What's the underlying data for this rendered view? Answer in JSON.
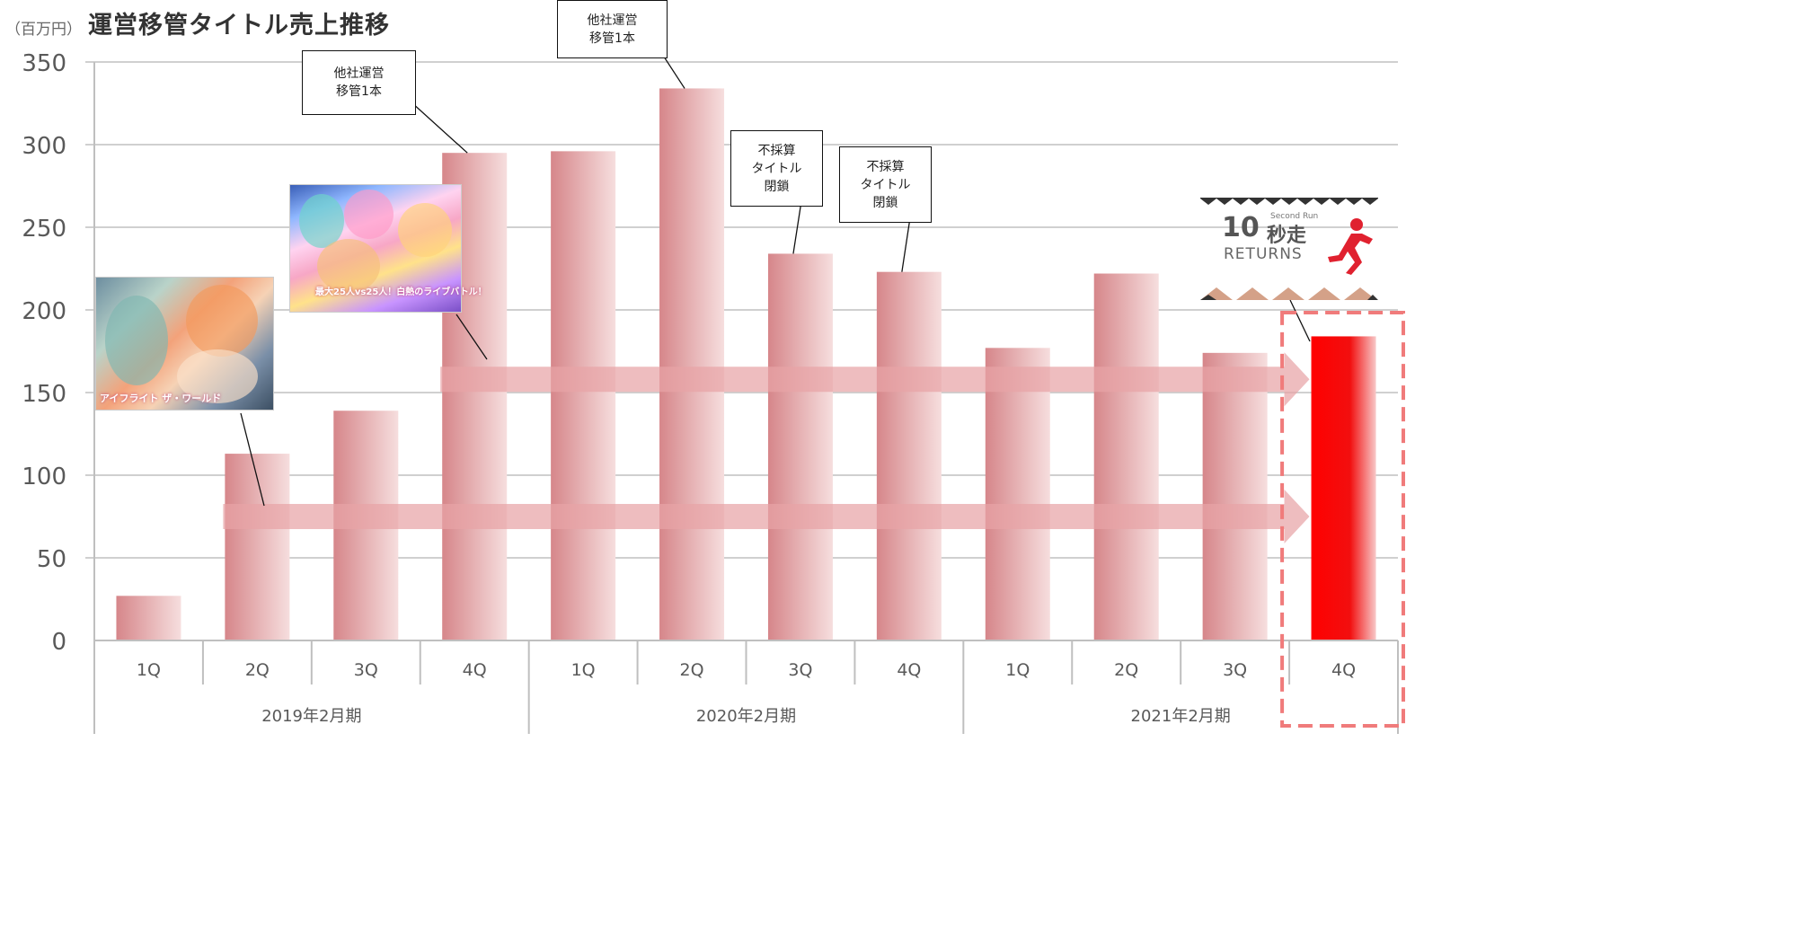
{
  "header": {
    "unit": "（百万円）",
    "title": "運営移管タイトル売上推移"
  },
  "colors": {
    "bar": "#d98c8f",
    "bar_highlight": "#ff0000",
    "arrow": "#e8a3a6",
    "highlight_box": "#f07b7b",
    "grid": "#d0d0d0"
  },
  "chart_data": {
    "type": "bar",
    "title": "運営移管タイトル売上推移",
    "ylabel": "（百万円）",
    "ylim": [
      0,
      350
    ],
    "yticks": [
      0,
      50,
      100,
      150,
      200,
      250,
      300,
      350
    ],
    "categories": [
      "1Q",
      "2Q",
      "3Q",
      "4Q",
      "1Q",
      "2Q",
      "3Q",
      "4Q",
      "1Q",
      "2Q",
      "3Q",
      "4Q"
    ],
    "groups": [
      {
        "label": "2019年2月期",
        "span": 4
      },
      {
        "label": "2020年2月期",
        "span": 4
      },
      {
        "label": "2021年2月期",
        "span": 4
      }
    ],
    "values": [
      27,
      113,
      139,
      295,
      296,
      334,
      234,
      223,
      177,
      222,
      174,
      184
    ],
    "highlight_index": 11,
    "grid": true,
    "arrows": [
      {
        "from_index": 1,
        "to_index": 11,
        "y": 75
      },
      {
        "from_index": 3,
        "to_index": 11,
        "y": 158
      }
    ]
  },
  "callouts": [
    {
      "lines": [
        "他社運営",
        "移管1本"
      ],
      "target_index": 3
    },
    {
      "lines": [
        "他社運営",
        "移管1本"
      ],
      "target_index": 5
    },
    {
      "lines": [
        "不採算",
        "タイトル",
        "閉鎖"
      ],
      "target_index": 6
    },
    {
      "lines": [
        "不採算",
        "タイトル",
        "閉鎖"
      ],
      "target_index": 7
    }
  ],
  "images": {
    "thumb1": {
      "icon": "game-banner-1",
      "caption": "アイフライト ザ・ワールド"
    },
    "thumb2": {
      "icon": "game-banner-2",
      "caption": "最大25人vs25人！白熱のライブバトル！"
    },
    "logo": {
      "icon": "10-byou-sou-returns-logo",
      "number": "10",
      "kanji": "秒走",
      "small": "Second Run",
      "returns": "RETURNS"
    }
  }
}
